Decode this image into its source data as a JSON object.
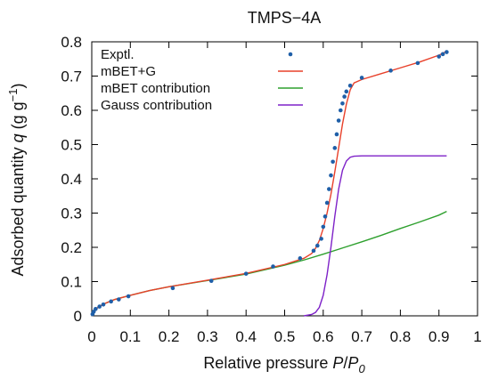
{
  "chart_data": {
    "type": "line",
    "title": "TMPS−4A",
    "xlabel": {
      "prefix": "Relative pressure ",
      "var": "P",
      "sep": "/",
      "var2": "P",
      "sub": "0"
    },
    "ylabel": {
      "prefix": "Adsorbed quantity ",
      "var": "q",
      "unit_open": " (g g",
      "sup": "−1",
      "unit_close": ")"
    },
    "xlim": [
      0,
      1
    ],
    "ylim": [
      0,
      0.8
    ],
    "xticks": [
      "0",
      "0.1",
      "0.2",
      "0.3",
      "0.4",
      "0.5",
      "0.6",
      "0.7",
      "0.8",
      "0.9",
      "1"
    ],
    "yticks": [
      "0",
      "0.1",
      "0.2",
      "0.3",
      "0.4",
      "0.5",
      "0.6",
      "0.7",
      "0.8"
    ],
    "grid": false,
    "legend_position": "top-left",
    "series": [
      {
        "name": "Exptl.",
        "kind": "scatter",
        "color": "#1f5fa8",
        "x": [
          0.002,
          0.005,
          0.01,
          0.02,
          0.03,
          0.05,
          0.07,
          0.095,
          0.21,
          0.31,
          0.4,
          0.47,
          0.54,
          0.575,
          0.585,
          0.595,
          0.6,
          0.605,
          0.61,
          0.615,
          0.62,
          0.625,
          0.63,
          0.635,
          0.64,
          0.645,
          0.65,
          0.655,
          0.66,
          0.67,
          0.7,
          0.775,
          0.845,
          0.9,
          0.91,
          0.92
        ],
        "y": [
          0.005,
          0.012,
          0.02,
          0.027,
          0.033,
          0.042,
          0.048,
          0.057,
          0.081,
          0.102,
          0.123,
          0.144,
          0.168,
          0.19,
          0.205,
          0.225,
          0.26,
          0.29,
          0.33,
          0.37,
          0.41,
          0.45,
          0.49,
          0.53,
          0.57,
          0.6,
          0.62,
          0.64,
          0.655,
          0.672,
          0.695,
          0.716,
          0.738,
          0.757,
          0.764,
          0.77
        ]
      },
      {
        "name": "mBET+G",
        "kind": "line",
        "color": "#e8402a",
        "x": [
          0,
          0.01,
          0.03,
          0.06,
          0.1,
          0.15,
          0.2,
          0.3,
          0.4,
          0.5,
          0.55,
          0.57,
          0.58,
          0.59,
          0.6,
          0.61,
          0.62,
          0.63,
          0.64,
          0.65,
          0.66,
          0.67,
          0.68,
          0.7,
          0.75,
          0.8,
          0.85,
          0.9,
          0.92
        ],
        "y": [
          0,
          0.02,
          0.034,
          0.048,
          0.06,
          0.074,
          0.085,
          0.104,
          0.124,
          0.15,
          0.168,
          0.182,
          0.197,
          0.22,
          0.255,
          0.3,
          0.355,
          0.42,
          0.49,
          0.56,
          0.618,
          0.66,
          0.68,
          0.69,
          0.707,
          0.724,
          0.741,
          0.761,
          0.772
        ]
      },
      {
        "name": "mBET contribution",
        "kind": "line",
        "color": "#2ea02e",
        "x": [
          0,
          0.01,
          0.03,
          0.06,
          0.1,
          0.15,
          0.2,
          0.3,
          0.4,
          0.5,
          0.55,
          0.6,
          0.65,
          0.7,
          0.75,
          0.8,
          0.85,
          0.9,
          0.92
        ],
        "y": [
          0,
          0.02,
          0.034,
          0.048,
          0.06,
          0.074,
          0.085,
          0.103,
          0.122,
          0.148,
          0.163,
          0.18,
          0.198,
          0.216,
          0.235,
          0.255,
          0.274,
          0.294,
          0.305
        ]
      },
      {
        "name": "Gauss contribution",
        "kind": "line",
        "color": "#7e22c8",
        "x": [
          0.55,
          0.57,
          0.58,
          0.59,
          0.6,
          0.61,
          0.62,
          0.63,
          0.64,
          0.65,
          0.66,
          0.67,
          0.68,
          0.7,
          0.75,
          0.8,
          0.85,
          0.9,
          0.92
        ],
        "y": [
          0,
          0.004,
          0.01,
          0.025,
          0.06,
          0.12,
          0.2,
          0.29,
          0.37,
          0.425,
          0.452,
          0.463,
          0.466,
          0.467,
          0.467,
          0.467,
          0.467,
          0.467,
          0.467
        ]
      }
    ]
  }
}
